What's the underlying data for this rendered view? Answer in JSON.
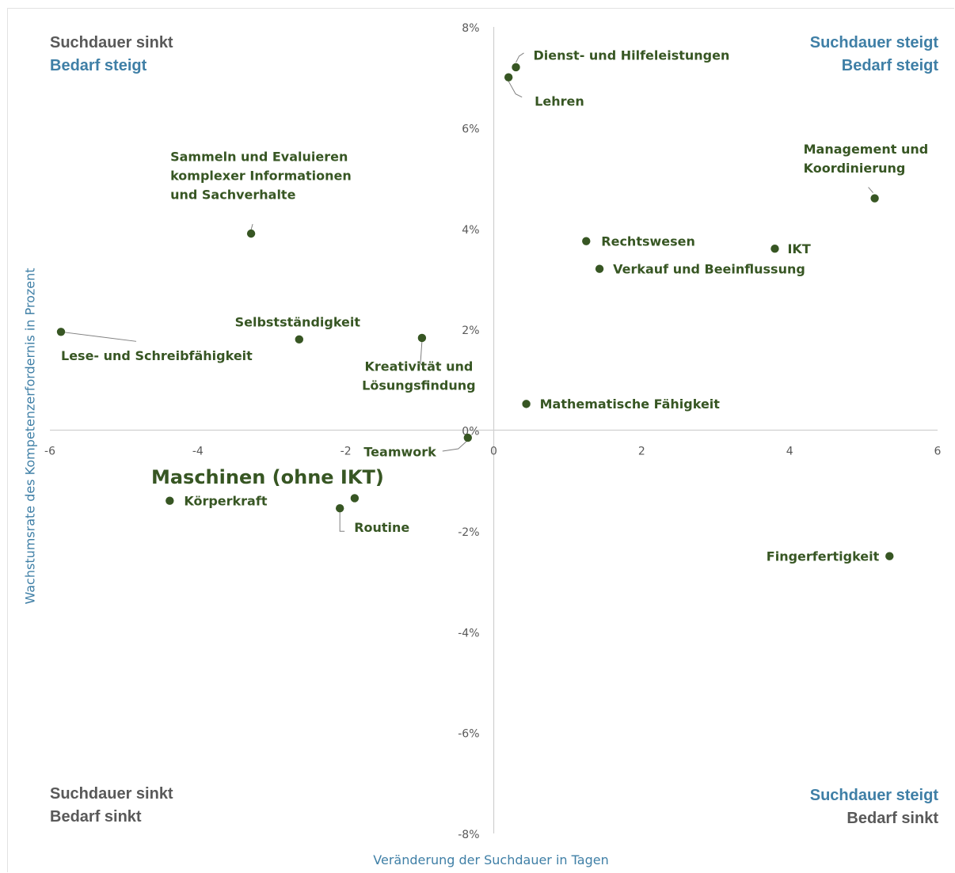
{
  "corners": {
    "top_left": [
      "Suchdauer sinkt",
      "Bedarf steigt"
    ],
    "top_right": [
      "Suchdauer steigt",
      "Bedarf steigt"
    ],
    "bottom_left": [
      "Suchdauer sinkt",
      "Bedarf sinkt"
    ],
    "bottom_right": [
      "Suchdauer steigt",
      "Bedarf sinkt"
    ]
  },
  "colors": {
    "point": "#375623",
    "label": "#375623",
    "axis": "#d0d0d0",
    "tick_label": "#595959",
    "quadrant_gray": "#595959",
    "quadrant_blue": "#3f7fa6",
    "axis_title": "#3f7fa6"
  },
  "chart_data": {
    "type": "scatter",
    "title": "",
    "xlabel": "Veränderung der Suchdauer in Tagen",
    "ylabel": "Wachstumsrate des Kompetenzerfordernis in Prozent",
    "xlim": [
      -6,
      6
    ],
    "ylim": [
      -8,
      8
    ],
    "xticks": [
      -6,
      -4,
      -2,
      0,
      2,
      4,
      6
    ],
    "xtick_labels": [
      "-6",
      "-4",
      "-2",
      "0",
      "2",
      "4",
      "6"
    ],
    "yticks": [
      8,
      6,
      4,
      2,
      0,
      -2,
      -4,
      -6,
      -8
    ],
    "ytick_labels": [
      "8%",
      "6%",
      "4%",
      "2%",
      "0%",
      "-2%",
      "-4%",
      "-6%",
      "-8%"
    ],
    "grid": false,
    "points": [
      {
        "label": "Dienst- und Hilfeleistungen",
        "x": 0.3,
        "y": 7.2
      },
      {
        "label": "Lehren",
        "x": 0.2,
        "y": 7.0
      },
      {
        "label": "Management und Koordinierung",
        "x": 5.15,
        "y": 4.6
      },
      {
        "label": "Rechtswesen",
        "x": 1.25,
        "y": 3.75
      },
      {
        "label": "IKT",
        "x": 3.8,
        "y": 3.6
      },
      {
        "label": "Verkauf und Beeinflussung",
        "x": 1.43,
        "y": 3.2
      },
      {
        "label": "Sammeln und Evaluieren komplexer Informationen und Sachverhalte",
        "x": -3.28,
        "y": 3.9
      },
      {
        "label": "Lese- und Schreibfähigkeit",
        "x": -5.85,
        "y": 1.95
      },
      {
        "label": "Selbstständigkeit",
        "x": -2.63,
        "y": 1.8
      },
      {
        "label": "Kreativität und Lösungsfindung",
        "x": -0.97,
        "y": 1.83
      },
      {
        "label": "Mathematische Fähigkeit",
        "x": 0.44,
        "y": 0.52
      },
      {
        "label": "Teamwork",
        "x": -0.35,
        "y": -0.15
      },
      {
        "label": "Maschinen (ohne IKT)",
        "x": -1.88,
        "y": -1.35
      },
      {
        "label": "Körperkraft",
        "x": -4.38,
        "y": -1.4
      },
      {
        "label": "Routine",
        "x": -2.08,
        "y": -1.55
      },
      {
        "label": "Fingerfertigkeit",
        "x": 5.35,
        "y": -2.5
      }
    ]
  }
}
